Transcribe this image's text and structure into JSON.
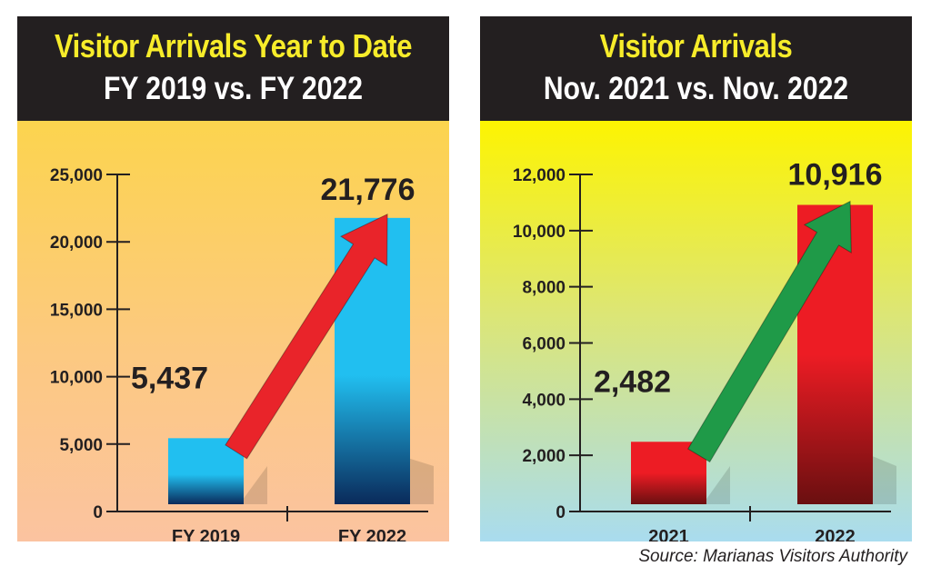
{
  "colors": {
    "title_yellow": "#f7ec2a",
    "left_bar_top": "#21bff0",
    "left_bar_bottom": "#0a2a5a",
    "right_bar_top": "#ed1c24",
    "right_bar_bottom": "#6a0f10",
    "left_arrow": "#e9242a",
    "right_arrow": "#1f9a48"
  },
  "panels": {
    "left": {
      "title_line1": "Visitor Arrivals Year to Date",
      "title_line2": "FY 2019 vs. FY 2022"
    },
    "right": {
      "title_line1": "Visitor Arrivals",
      "title_line2": "Nov. 2021 vs. Nov. 2022"
    }
  },
  "source": "Source: Marianas Visitors Authority",
  "chart_data": [
    {
      "type": "bar",
      "title": "Visitor Arrivals Year to Date FY 2019 vs. FY 2022",
      "categories": [
        "FY 2019",
        "FY 2022"
      ],
      "values": [
        5437,
        21776
      ],
      "data_labels": [
        "5,437",
        "21,776"
      ],
      "ylim": [
        0,
        25000
      ],
      "yticks": [
        0,
        5000,
        10000,
        15000,
        20000,
        25000
      ],
      "ytick_labels": [
        "0",
        "5,000",
        "10,000",
        "15,000",
        "20,000",
        "25,000"
      ],
      "grid": false,
      "legend": "none",
      "arrow": "rising arrow from first bar to second bar"
    },
    {
      "type": "bar",
      "title": "Visitor Arrivals Nov. 2021 vs. Nov. 2022",
      "categories": [
        "2021",
        "2022"
      ],
      "values": [
        2482,
        10916
      ],
      "data_labels": [
        "2,482",
        "10,916"
      ],
      "ylim": [
        0,
        12000
      ],
      "yticks": [
        0,
        2000,
        4000,
        6000,
        8000,
        10000,
        12000
      ],
      "ytick_labels": [
        "0",
        "2,000",
        "4,000",
        "6,000",
        "8,000",
        "10,000",
        "12,000"
      ],
      "grid": false,
      "legend": "none",
      "arrow": "rising arrow from first bar to second bar"
    }
  ]
}
